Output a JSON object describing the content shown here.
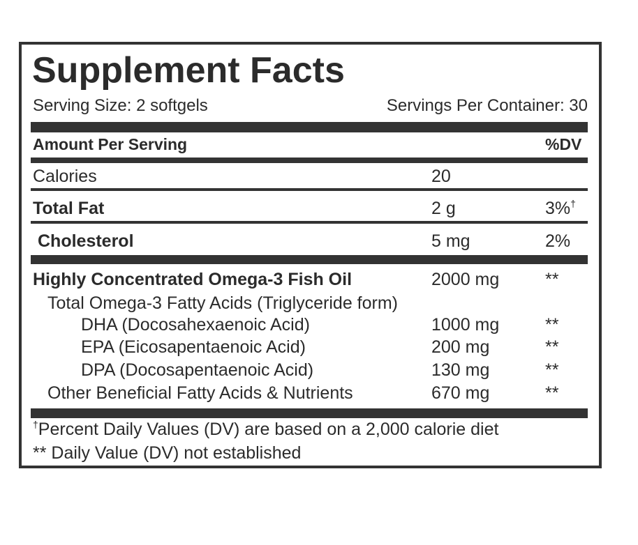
{
  "title": "Supplement Facts",
  "serving_size": "Serving Size: 2 softgels",
  "servings_per_container": "Servings Per Container: 30",
  "header": {
    "amount": "Amount Per Serving",
    "dv": "%DV"
  },
  "rows": [
    {
      "name": "Calories",
      "amount": "20"
    },
    {
      "name": "Total Fat",
      "amount": "2 g",
      "dv": "3%",
      "dv_mark": "†"
    },
    {
      "name": "Cholesterol",
      "amount": "5 mg",
      "dv": "2%"
    },
    {
      "name": "Highly Concentrated Omega-3 Fish Oil",
      "amount": "2000 mg",
      "dv": "**"
    },
    {
      "name": "Total Omega-3 Fatty Acids (Triglyceride form)"
    },
    {
      "name": "DHA (Docosahexaenoic Acid)",
      "amount": "1000 mg",
      "dv": "**"
    },
    {
      "name": "EPA (Eicosapentaenoic Acid)",
      "amount": "200 mg",
      "dv": "**"
    },
    {
      "name": "DPA (Docosapentaenoic Acid)",
      "amount": "130 mg",
      "dv": "**"
    },
    {
      "name": "Other Beneficial Fatty Acids & Nutrients",
      "amount": "670 mg",
      "dv": "**"
    }
  ],
  "footnotes": [
    {
      "mark": "†",
      "text": "Percent Daily Values (DV) are based on a 2,000 calorie diet"
    },
    {
      "text": "** Daily Value (DV) not established"
    }
  ]
}
